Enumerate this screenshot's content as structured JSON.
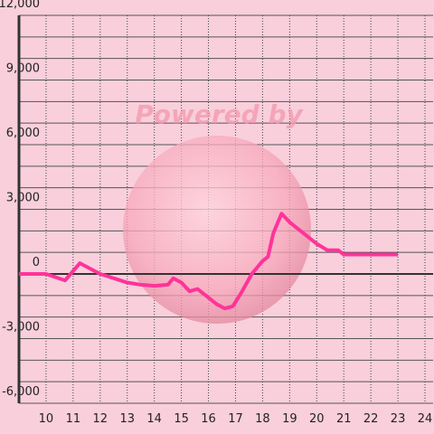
{
  "chart_data": {
    "type": "line",
    "watermark": "Powered by",
    "x": [
      9,
      10,
      10.7,
      11.25,
      12,
      12.5,
      13,
      13.5,
      14,
      14.5,
      14.7,
      15,
      15.3,
      15.6,
      16,
      16.3,
      16.6,
      16.9,
      17.2,
      17.6,
      18,
      18.2,
      18.4,
      18.7,
      19,
      19.3,
      19.6,
      20,
      20.4,
      20.8,
      21,
      22,
      23
    ],
    "series": [
      {
        "color": "#ff3399",
        "values": [
          0,
          0,
          -300,
          500,
          0,
          -200,
          -400,
          -500,
          -550,
          -500,
          -200,
          -400,
          -800,
          -700,
          -1100,
          -1400,
          -1600,
          -1500,
          -900,
          0,
          600,
          800,
          1900,
          2800,
          2400,
          2100,
          1800,
          1400,
          1100,
          1100,
          900,
          900,
          900
        ]
      }
    ],
    "xlim": [
      9,
      24.3
    ],
    "xticks": [
      10,
      11,
      12,
      13,
      14,
      15,
      16,
      17,
      18,
      19,
      20,
      21,
      22,
      23,
      24
    ],
    "ylim": [
      -6000,
      12000
    ],
    "yticks": [
      {
        "value": -6000,
        "label": "-6,000"
      },
      {
        "value": -3000,
        "label": "-3,000"
      },
      0,
      {
        "value": 3000,
        "label": "3,000"
      },
      {
        "value": 6000,
        "label": "6,000"
      },
      {
        "value": 9000,
        "label": "9,000"
      },
      {
        "value": 12000,
        "label": "12,000"
      }
    ],
    "grid": true
  }
}
